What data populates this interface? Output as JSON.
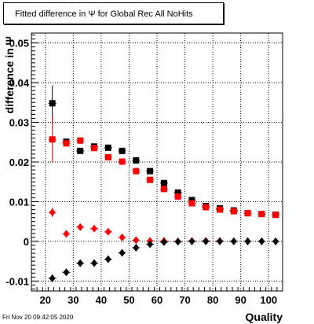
{
  "title": "Fitted difference in  Ψ  for Global Rec All NoHits",
  "timestamp": "Fri Nov 20 09:42:05 2020",
  "chart_data": {
    "type": "scatter",
    "title": "Fitted difference in  Ψ  for Global Rec All NoHits",
    "xlabel": "Quality",
    "ylabel": "difference in Ψ",
    "xlim": [
      15,
      105
    ],
    "ylim": [
      -0.0125,
      0.0525
    ],
    "x_ticks": [
      20,
      30,
      40,
      50,
      60,
      70,
      80,
      90,
      100
    ],
    "y_ticks": [
      -0.01,
      0,
      0.01,
      0.02,
      0.03,
      0.04,
      0.05
    ],
    "y_tick_labels": [
      "-0.01",
      "0",
      "0.01",
      "0.02",
      "0.03",
      "0.04",
      "0.05"
    ],
    "grid": true,
    "x": [
      22.5,
      27.5,
      32.5,
      37.5,
      42.5,
      47.5,
      52.5,
      57.5,
      62.5,
      67.5,
      72.5,
      77.5,
      82.5,
      87.5,
      92.5,
      97.5,
      102.5
    ],
    "series": [
      {
        "marker": "square",
        "color": "#000000",
        "values": [
          0.0348,
          0.0251,
          0.0228,
          0.0239,
          0.0236,
          0.0228,
          0.0204,
          0.0177,
          0.0147,
          0.0123,
          0.0104,
          0.0089,
          0.0083,
          0.0078,
          0.0071,
          0.0069,
          0.0067
        ],
        "errors": [
          0.0045,
          0.0008,
          0.0007,
          0.0006,
          0.0006,
          0.0006,
          0.0005,
          0.0005,
          0.0004,
          0.0004,
          0.0004,
          0.0003,
          0.0003,
          0.0003,
          0.0003,
          0.0003,
          0.0003
        ]
      },
      {
        "marker": "square",
        "color": "#ff0000",
        "values": [
          0.0257,
          0.0247,
          0.0254,
          0.0235,
          0.0212,
          0.0201,
          0.0177,
          0.0155,
          0.0132,
          0.0113,
          0.0096,
          0.0086,
          0.008,
          0.0076,
          0.0071,
          0.0069,
          0.0067
        ],
        "errors": [
          0.0058,
          0.0008,
          0.0007,
          0.0006,
          0.0006,
          0.0006,
          0.0005,
          0.0005,
          0.0004,
          0.0004,
          0.0004,
          0.0003,
          0.0003,
          0.0003,
          0.0003,
          0.0003,
          0.0003
        ]
      },
      {
        "marker": "diamond",
        "color": "#ff0000",
        "values": [
          0.0073,
          0.0019,
          0.0036,
          0.0032,
          0.0024,
          0.001,
          0.0003,
          0.0001,
          0.0001,
          0.0,
          0.0001,
          0.0001,
          0.0001,
          0.0,
          0.0,
          0.0,
          0.0
        ],
        "errors": [
          0.0012,
          0.0003,
          0.0003,
          0.0002,
          0.0002,
          0.0002,
          0.0001,
          0.0001,
          0.0001,
          0.0001,
          0.0001,
          0.0001,
          0.0001,
          0.0001,
          0.0001,
          0.0001,
          0.0001
        ]
      },
      {
        "marker": "diamond",
        "color": "#000000",
        "values": [
          -0.0093,
          -0.0078,
          -0.0055,
          -0.0055,
          -0.0045,
          -0.0029,
          -0.0016,
          -0.0007,
          -0.0002,
          -0.0001,
          0.0,
          0.0,
          0.0,
          0.0,
          0.0,
          0.0,
          0.0
        ],
        "errors": [
          0.001,
          0.0004,
          0.0003,
          0.0003,
          0.0002,
          0.0002,
          0.0002,
          0.0001,
          0.0001,
          0.0001,
          0.0001,
          0.0001,
          0.0001,
          0.0001,
          0.0001,
          0.0001,
          0.0001
        ]
      }
    ]
  }
}
